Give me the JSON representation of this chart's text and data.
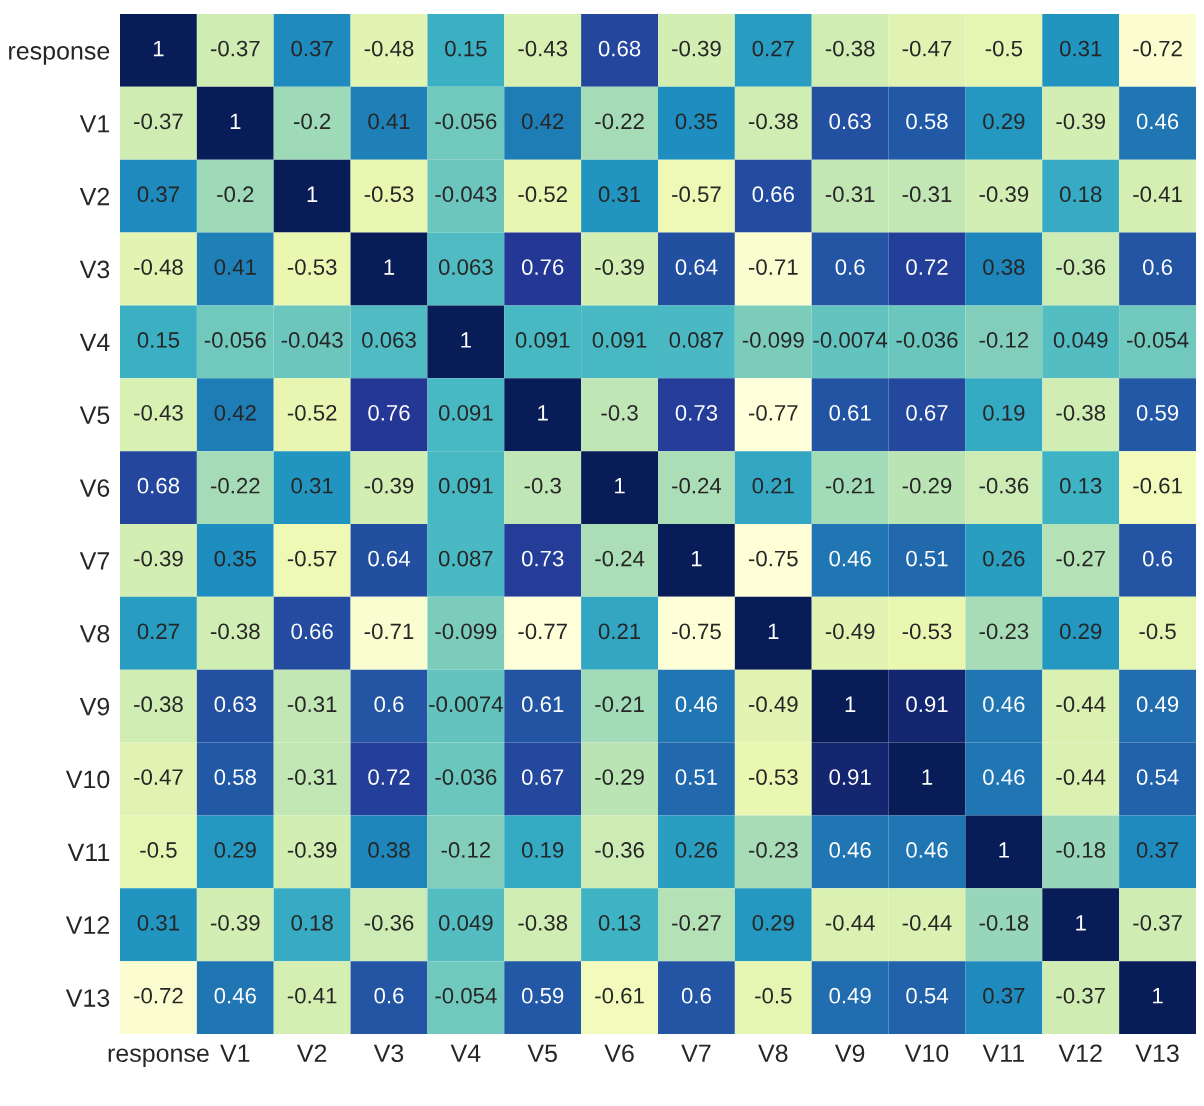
{
  "chart_data": {
    "type": "heatmap",
    "categories": [
      "response",
      "V1",
      "V2",
      "V3",
      "V4",
      "V5",
      "V6",
      "V7",
      "V8",
      "V9",
      "V10",
      "V11",
      "V12",
      "V13"
    ],
    "y_categories": [
      "response",
      "V1",
      "V2",
      "V3",
      "V4",
      "V5",
      "V6",
      "V7",
      "V8",
      "V9",
      "V10",
      "V11",
      "V12",
      "V13"
    ],
    "data_labels": true,
    "cells": [
      [
        1,
        -0.37,
        0.37,
        -0.48,
        0.15,
        -0.43,
        0.68,
        -0.39,
        0.27,
        -0.38,
        -0.47,
        -0.5,
        0.31,
        -0.72
      ],
      [
        -0.37,
        1,
        -0.2,
        0.41,
        -0.056,
        0.42,
        -0.22,
        0.35,
        -0.38,
        0.63,
        0.58,
        0.29,
        -0.39,
        0.46
      ],
      [
        0.37,
        -0.2,
        1,
        -0.53,
        -0.043,
        -0.52,
        0.31,
        -0.57,
        0.66,
        -0.31,
        -0.31,
        -0.39,
        0.18,
        -0.41
      ],
      [
        -0.48,
        0.41,
        -0.53,
        1,
        0.063,
        0.76,
        -0.39,
        0.64,
        -0.71,
        0.6,
        0.72,
        0.38,
        -0.36,
        0.6
      ],
      [
        0.15,
        -0.056,
        -0.043,
        0.063,
        1,
        0.091,
        0.091,
        0.087,
        -0.099,
        -0.0074,
        -0.036,
        -0.12,
        0.049,
        -0.054
      ],
      [
        -0.43,
        0.42,
        -0.52,
        0.76,
        0.091,
        1,
        -0.3,
        0.73,
        -0.77,
        0.61,
        0.67,
        0.19,
        -0.38,
        0.59
      ],
      [
        0.68,
        -0.22,
        0.31,
        -0.39,
        0.091,
        -0.3,
        1,
        -0.24,
        0.21,
        -0.21,
        -0.29,
        -0.36,
        0.13,
        -0.61
      ],
      [
        -0.39,
        0.35,
        -0.57,
        0.64,
        0.087,
        0.73,
        -0.24,
        1,
        -0.75,
        0.46,
        0.51,
        0.26,
        -0.27,
        0.6
      ],
      [
        0.27,
        -0.38,
        0.66,
        -0.71,
        -0.099,
        -0.77,
        0.21,
        -0.75,
        1,
        -0.49,
        -0.53,
        -0.23,
        0.29,
        -0.5
      ],
      [
        -0.38,
        0.63,
        -0.31,
        0.6,
        -0.0074,
        0.61,
        -0.21,
        0.46,
        -0.49,
        1,
        0.91,
        0.46,
        -0.44,
        0.49
      ],
      [
        -0.47,
        0.58,
        -0.31,
        0.72,
        -0.036,
        0.67,
        -0.29,
        0.51,
        -0.53,
        0.91,
        1,
        0.46,
        -0.44,
        0.54
      ],
      [
        -0.5,
        0.29,
        -0.39,
        0.38,
        -0.12,
        0.19,
        -0.36,
        0.26,
        -0.23,
        0.46,
        0.46,
        1,
        -0.18,
        0.37
      ],
      [
        0.31,
        -0.39,
        0.18,
        -0.36,
        0.049,
        -0.38,
        0.13,
        -0.27,
        0.29,
        -0.44,
        -0.44,
        -0.18,
        1,
        -0.37
      ],
      [
        -0.72,
        0.46,
        -0.41,
        0.6,
        -0.054,
        0.59,
        -0.61,
        0.6,
        -0.5,
        0.49,
        0.54,
        0.37,
        -0.37,
        1
      ]
    ]
  }
}
